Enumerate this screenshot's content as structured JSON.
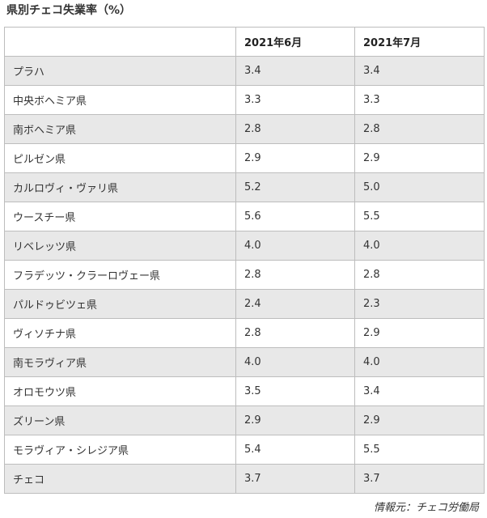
{
  "title": "県別チェコ失業率（%）",
  "table": {
    "headers": [
      "",
      "2021年6月",
      "2021年7月"
    ],
    "rows": [
      {
        "region": "プラハ",
        "jun": "3.4",
        "jul": "3.4"
      },
      {
        "region": "中央ボヘミア県",
        "jun": "3.3",
        "jul": "3.3"
      },
      {
        "region": "南ボヘミア県",
        "jun": "2.8",
        "jul": "2.8"
      },
      {
        "region": "ピルゼン県",
        "jun": "2.9",
        "jul": "2.9"
      },
      {
        "region": "カルロヴィ・ヴァリ県",
        "jun": "5.2",
        "jul": "5.0"
      },
      {
        "region": "ウースチー県",
        "jun": "5.6",
        "jul": "5.5"
      },
      {
        "region": "リベレッツ県",
        "jun": "4.0",
        "jul": "4.0"
      },
      {
        "region": "フラデッツ・クラーロヴェー県",
        "jun": "2.8",
        "jul": "2.8"
      },
      {
        "region": "パルドゥビツェ県",
        "jun": "2.4",
        "jul": "2.3"
      },
      {
        "region": "ヴィソチナ県",
        "jun": "2.8",
        "jul": "2.9"
      },
      {
        "region": "南モラヴィア県",
        "jun": "4.0",
        "jul": "4.0"
      },
      {
        "region": "オロモウツ県",
        "jun": "3.5",
        "jul": "3.4"
      },
      {
        "region": "ズリーン県",
        "jun": "2.9",
        "jul": "2.9"
      },
      {
        "region": "モラヴィア・シレジア県",
        "jun": "5.4",
        "jul": "5.5"
      },
      {
        "region": "チェコ",
        "jun": "3.7",
        "jul": "3.7"
      }
    ]
  },
  "source": "情報元：チェコ労働局"
}
